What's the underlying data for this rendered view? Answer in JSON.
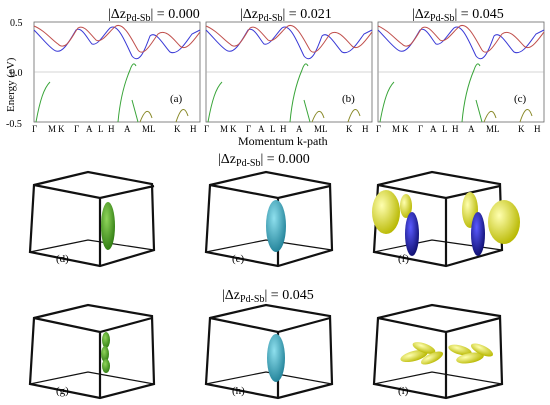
{
  "figure": {
    "top_panel": {
      "ylabel": "Energy (eV)",
      "xlabel": "Momentum k-path",
      "yticks": [
        "0.5",
        "0.0",
        "-0.5"
      ],
      "kpath_labels": [
        "Γ",
        "M",
        "K",
        "Γ",
        "A",
        "L",
        "H",
        "A",
        "ML",
        "K",
        "H"
      ],
      "panels": [
        {
          "tag": "(a)",
          "dz_value": "0.000"
        },
        {
          "tag": "(b)",
          "dz_value": "0.021"
        },
        {
          "tag": "(c)",
          "dz_value": "0.045"
        }
      ]
    },
    "dz_prefix": "|Δz",
    "dz_subscript": "Pd-Sb",
    "dz_suffix": "| = ",
    "row1": {
      "dz_value": "0.000",
      "tags": [
        "(d)",
        "(e)",
        "(f)"
      ]
    },
    "row2": {
      "dz_value": "0.045",
      "tags": [
        "(g)",
        "(h)",
        "(i)"
      ]
    },
    "colors": {
      "blue_band": "#3a3ad6",
      "red_band": "#c0504d",
      "green_band": "#3aa53a",
      "olive_band": "#8a8a2a",
      "green_surface": "#3c9a1c",
      "cyan_surface": "#3aa3b8",
      "yellow_surface": "#e6e61e",
      "navy_surface": "#1c1c9a"
    }
  }
}
